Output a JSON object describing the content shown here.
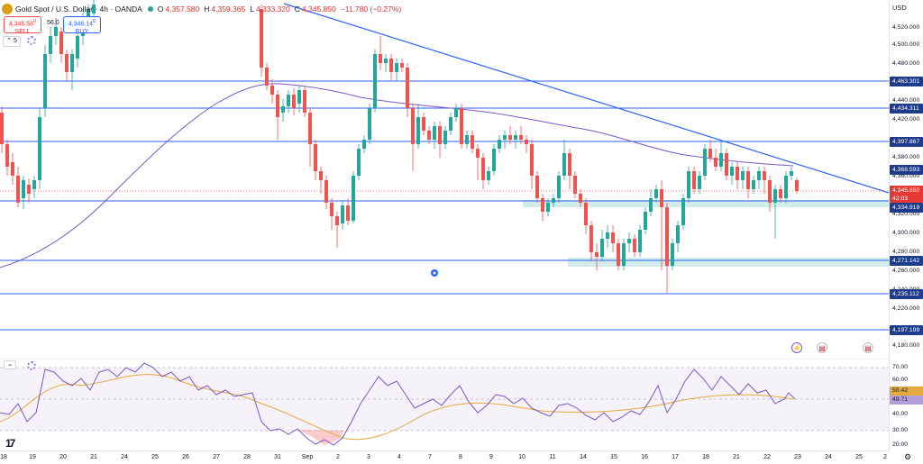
{
  "header": {
    "title": "Gold Spot / U.S. Dollar · 4h · OANDA",
    "o_key": "O",
    "o_val": "4,357.580",
    "h_key": "H",
    "h_val": "4,359.365",
    "l_key": "L",
    "l_val": "4,333.320",
    "c_key": "C",
    "c_val": "4,345.850",
    "change": "−11.780 (−0.27%)"
  },
  "trade": {
    "sell_price": "4,345.58",
    "sell_sup": "0",
    "sell_label": "SELL",
    "spread": "56.0",
    "buy_price": "4,346.14",
    "buy_sup": "0",
    "buy_label": "BUY"
  },
  "indicator_toggle": "5",
  "price_axis": {
    "currency": "USD",
    "ticks": [
      "4,520.000",
      "4,500.000",
      "4,480.000",
      "4,440.000",
      "4,420.000",
      "4,380.000",
      "4,360.000",
      "4,320.000",
      "4,300.000",
      "4,280.000",
      "4,260.000",
      "4,240.000",
      "4,220.000",
      "4,180.000"
    ],
    "levels": [
      "4,463.301",
      "4,434.311",
      "4,397.867",
      "4,368.593",
      "4,334.919",
      "4,271.142",
      "4,235.112",
      "4,197.199"
    ],
    "current_price": "4,345.850",
    "countdown": "42:03"
  },
  "rsi_axis": {
    "ticks": [
      "70.00",
      "60.00",
      "40.00",
      "30.00",
      "20.00"
    ],
    "rsi_value": "50.42",
    "rsi_ma_value": "49.71"
  },
  "time_axis": [
    "18",
    "19",
    "20",
    "21",
    "24",
    "25",
    "26",
    "27",
    "28",
    "31",
    "Sep",
    "2",
    "3",
    "4",
    "7",
    "8",
    "9",
    "10",
    "11",
    "14",
    "15",
    "16",
    "17",
    "18",
    "21",
    "22",
    "23",
    "24",
    "25",
    "2"
  ],
  "icons": {
    "lightning": "lightning-icon",
    "flag": "flag-icon",
    "settings": "gear-icon"
  },
  "colors": {
    "up": "#26a69a",
    "down": "#ef5350",
    "level_line": "#2962ff",
    "ma_line": "#7e57c2",
    "zone": "#b2dfdb"
  }
}
